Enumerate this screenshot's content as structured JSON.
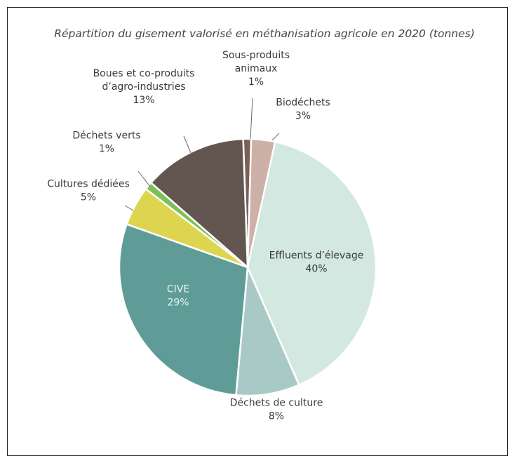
{
  "chart_data": {
    "type": "pie",
    "title": "Répartition du gisement valorisé en méthanisation agricole en 2020 (tonnes)",
    "unit": "%",
    "slices": [
      {
        "label_lines": [
          "Sous-produits",
          "animaux"
        ],
        "value": 1,
        "value_label": "1%",
        "color": "#7a5f59"
      },
      {
        "label_lines": [
          "Biodéchets"
        ],
        "value": 3,
        "value_label": "3%",
        "color": "#cdb0a6"
      },
      {
        "label_lines": [
          "Effluents d’élevage"
        ],
        "value": 40,
        "value_label": "40%",
        "color": "#d2e8e0"
      },
      {
        "label_lines": [
          "Déchets de culture"
        ],
        "value": 8,
        "value_label": "8%",
        "color": "#a9c9c6"
      },
      {
        "label_lines": [
          "CIVE"
        ],
        "value": 29,
        "value_label": "29%",
        "color": "#5f9c98"
      },
      {
        "label_lines": [
          "Cultures dédiées"
        ],
        "value": 5,
        "value_label": "5%",
        "color": "#ddd54f"
      },
      {
        "label_lines": [
          "Déchets verts"
        ],
        "value": 1,
        "value_label": "1%",
        "color": "#7cc157"
      },
      {
        "label_lines": [
          "Boues et co-produits",
          "d’agro-industries"
        ],
        "value": 13,
        "value_label": "13%",
        "color": "#635651"
      }
    ]
  }
}
